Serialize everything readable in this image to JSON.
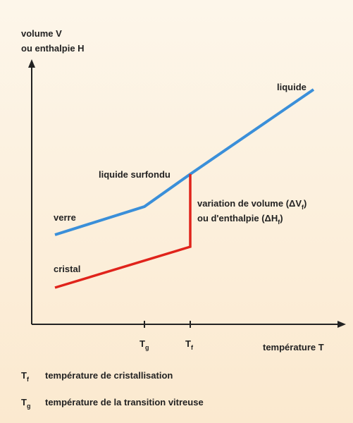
{
  "axes": {
    "y_label": [
      "volume V",
      "ou enthalpie H"
    ],
    "x_label": "température T"
  },
  "curves": {
    "liquid": "liquide",
    "supercooled": "liquide surfondu",
    "glass": "verre",
    "crystal": "cristal"
  },
  "annotation": [
    {
      "text": "variation de volume (ΔV",
      "sub": "f",
      "end": ")"
    },
    {
      "text": "ou d'enthalpie (ΔH",
      "sub": "f",
      "end": ")"
    }
  ],
  "ticks": [
    {
      "symbol": "T",
      "sub": "g"
    },
    {
      "symbol": "T",
      "sub": "f"
    }
  ],
  "legend": [
    {
      "symbol": "T",
      "sub": "f",
      "text": "température de cristallisation"
    },
    {
      "symbol": "T",
      "sub": "g",
      "text": "température de la transition vitreuse"
    }
  ]
}
